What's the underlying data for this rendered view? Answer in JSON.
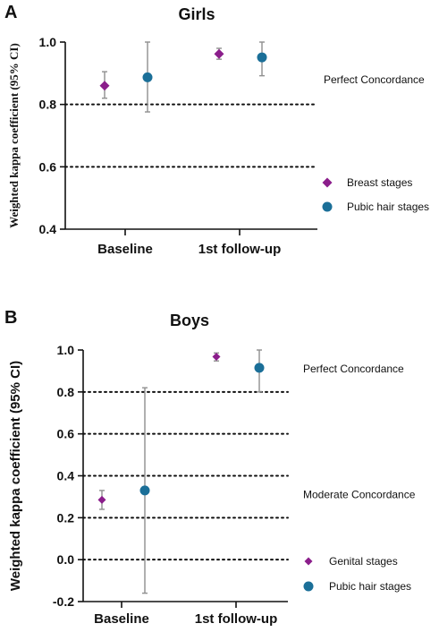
{
  "colors": {
    "magenta": "#8B1E8B",
    "teal": "#1B6F98",
    "errorbar": "#8f8f8f",
    "axis": "#111111"
  },
  "chart_data": [
    {
      "panel_letter": "A",
      "type": "scatter",
      "title": "Girls",
      "ylabel": "Weighted kappa coefficient (95% CI)",
      "ylim": [
        0.4,
        1.0
      ],
      "yticks": [
        "0.4",
        "0.6",
        "0.8",
        "1.0"
      ],
      "categories": [
        "Baseline",
        "1st follow-up"
      ],
      "reference_lines": [
        0.6,
        0.8
      ],
      "annotations": [
        {
          "text": "Perfect Concordance",
          "y": 0.88
        }
      ],
      "series": [
        {
          "name": "Breast stages",
          "marker": "diamond",
          "color": "#8B1E8B",
          "values": [
            0.86,
            0.962
          ],
          "ci_low": [
            0.82,
            0.945
          ],
          "ci_high": [
            0.905,
            0.98
          ]
        },
        {
          "name": "Pubic hair stages",
          "marker": "circle",
          "color": "#1B6F98",
          "values": [
            0.887,
            0.951
          ],
          "ci_low": [
            0.776,
            0.892
          ],
          "ci_high": [
            1.0,
            1.0
          ]
        }
      ],
      "legend_position": "right"
    },
    {
      "panel_letter": "B",
      "type": "scatter",
      "title": "Boys",
      "ylabel": "Weighted kappa coefficient (95% CI)",
      "ylim": [
        -0.2,
        1.0
      ],
      "yticks": [
        "-0.2",
        "0.0",
        "0.2",
        "0.4",
        "0.6",
        "0.8",
        "1.0"
      ],
      "categories": [
        "Baseline",
        "1st follow-up"
      ],
      "reference_lines": [
        0.0,
        0.2,
        0.4,
        0.6,
        0.8
      ],
      "annotations": [
        {
          "text": "Perfect Concordance",
          "y": 0.91
        },
        {
          "text": "Moderate Concordance",
          "y": 0.31
        }
      ],
      "series": [
        {
          "name": "Genital stages",
          "marker": "diamond",
          "color": "#8B1E8B",
          "values": [
            0.285,
            0.968
          ],
          "ci_low": [
            0.24,
            0.948
          ],
          "ci_high": [
            0.33,
            0.986
          ]
        },
        {
          "name": "Pubic hair stages",
          "marker": "circle",
          "color": "#1B6F98",
          "values": [
            0.33,
            0.915
          ],
          "ci_low": [
            -0.16,
            0.8
          ],
          "ci_high": [
            0.82,
            1.0
          ]
        }
      ],
      "legend_position": "right"
    }
  ]
}
